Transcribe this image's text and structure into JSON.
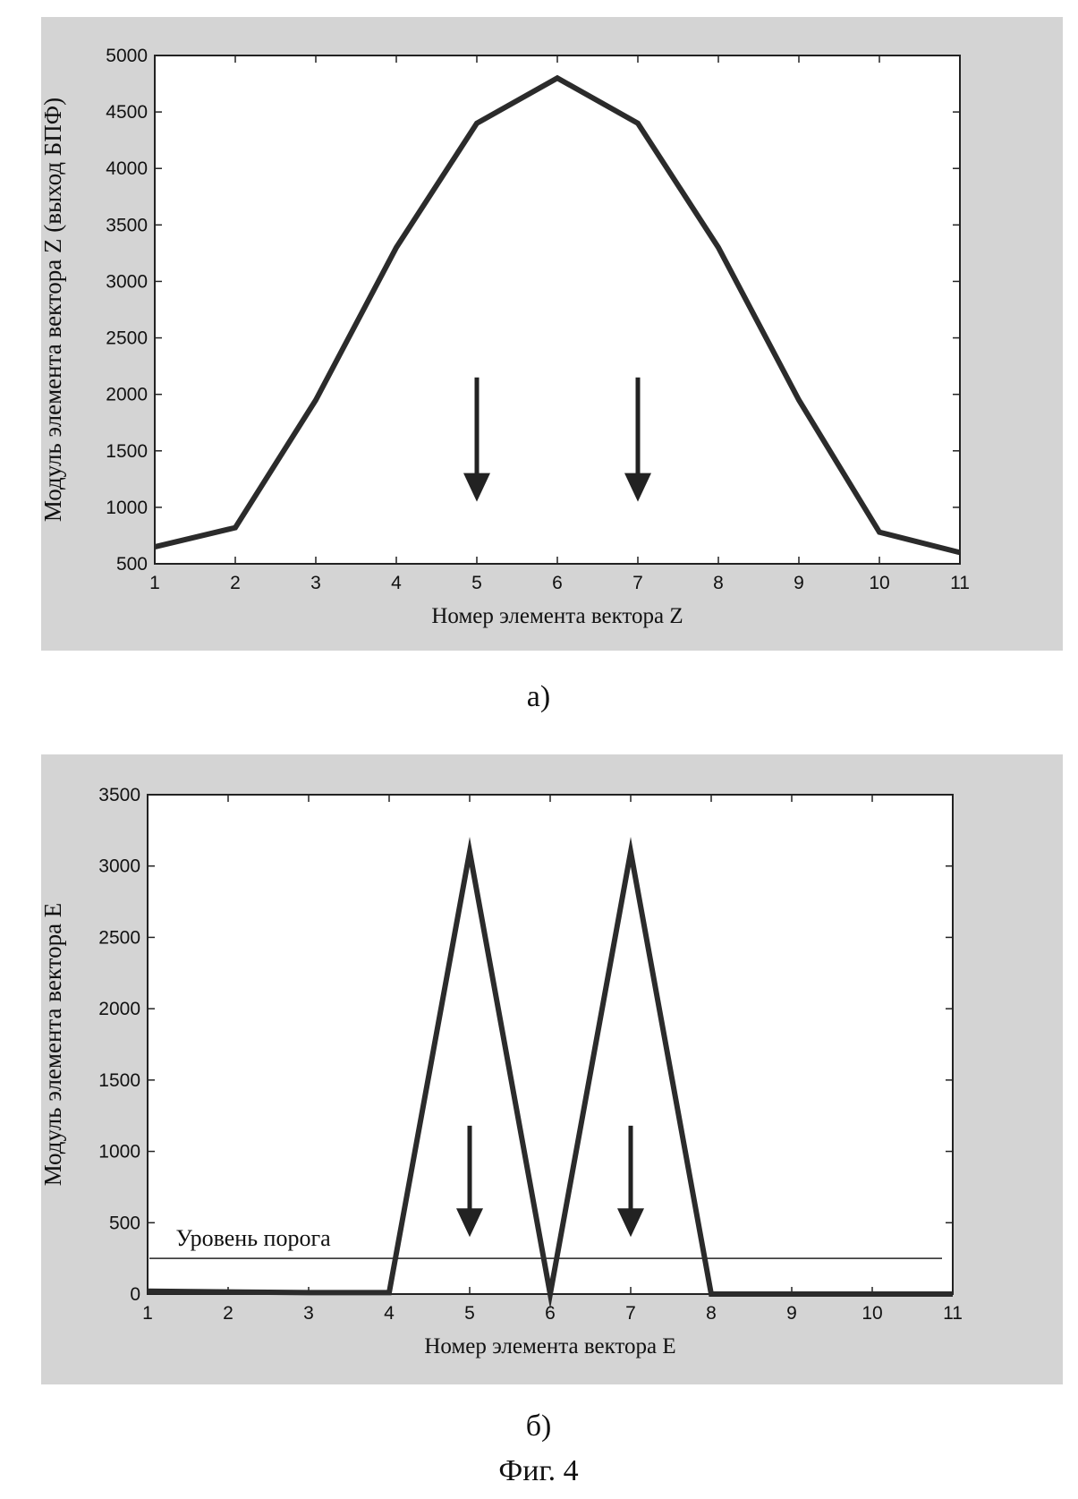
{
  "chart_data": [
    {
      "type": "line",
      "panel_label": "а)",
      "xlabel": "Номер элемента вектора Z",
      "ylabel": "Модуль элемента вектора Z (выход БПФ)",
      "xlim": [
        1,
        11
      ],
      "ylim": [
        500,
        5000
      ],
      "xticks": [
        1,
        2,
        3,
        4,
        5,
        6,
        7,
        8,
        9,
        10,
        11
      ],
      "yticks": [
        500,
        1000,
        1500,
        2000,
        2500,
        3000,
        3500,
        4000,
        4500,
        5000
      ],
      "grid": false,
      "series": [
        {
          "x": [
            1,
            2,
            3,
            4,
            5,
            6,
            7,
            8,
            9,
            10,
            11
          ],
          "y": [
            650,
            820,
            1950,
            3300,
            4400,
            4800,
            4400,
            3300,
            1950,
            780,
            600
          ]
        }
      ],
      "annotations": [
        {
          "type": "arrow-down",
          "x": 5,
          "y_from": 2150,
          "y_to": 1050
        },
        {
          "type": "arrow-down",
          "x": 7,
          "y_from": 2150,
          "y_to": 1050
        }
      ]
    },
    {
      "type": "line",
      "panel_label": "б)",
      "xlabel": "Номер элемента вектора Е",
      "ylabel": "Модуль элемента вектора Е",
      "xlim": [
        1,
        11
      ],
      "ylim": [
        0,
        3500
      ],
      "xticks": [
        1,
        2,
        3,
        4,
        5,
        6,
        7,
        8,
        9,
        10,
        11
      ],
      "yticks": [
        0,
        500,
        1000,
        1500,
        2000,
        2500,
        3000,
        3500
      ],
      "grid": false,
      "series": [
        {
          "x": [
            1,
            2,
            3,
            4,
            5,
            6,
            7,
            8,
            9,
            10,
            11
          ],
          "y": [
            20,
            15,
            10,
            10,
            3100,
            0,
            3100,
            0,
            0,
            0,
            0
          ]
        }
      ],
      "threshold": {
        "label": "Уровень порога",
        "value": 250
      },
      "annotations": [
        {
          "type": "arrow-down",
          "x": 5,
          "y_from": 1180,
          "y_to": 400
        },
        {
          "type": "arrow-down",
          "x": 7,
          "y_from": 1180,
          "y_to": 400
        }
      ]
    }
  ],
  "figure_title": "Фиг. 4"
}
